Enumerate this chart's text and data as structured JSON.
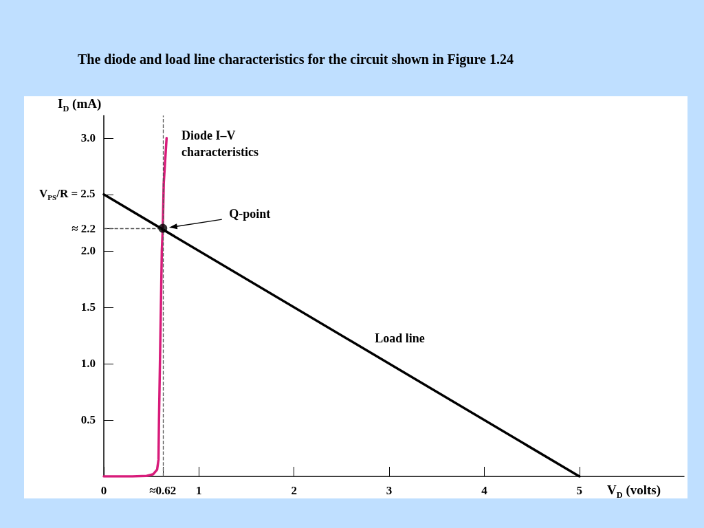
{
  "chart_data": {
    "type": "line",
    "title": "The diode and load line characteristics for the circuit shown in Figure 1.24",
    "xlabel": "V$_{D}$ (volts)",
    "ylabel": "I$_{D}$ (mA)",
    "xlim": [
      0,
      6.1
    ],
    "ylim": [
      0,
      3.2
    ],
    "xticks": [
      0,
      {
        "value": 0.62,
        "label": "≈0.62"
      },
      1,
      2,
      3,
      4,
      5
    ],
    "yticks": [
      0.5,
      {
        "value": 1,
        "label": "1.0"
      },
      1.5,
      {
        "value": 2,
        "label": "2.0"
      },
      {
        "value": 2.2,
        "label": "≈ 2.2"
      },
      {
        "value": 2.5,
        "label": "V$_{PS}$/R = 2.5"
      },
      {
        "value": 3,
        "label": "3.0"
      }
    ],
    "series": [
      {
        "color": "#d81b7a",
        "marker": "none",
        "x": [
          0,
          0.3,
          0.45,
          0.52,
          0.56,
          0.575,
          0.58,
          0.59,
          0.6,
          0.61,
          0.62,
          0.63,
          0.66
        ],
        "values": [
          0,
          0,
          0.005,
          0.02,
          0.06,
          0.15,
          0.5,
          1.0,
          1.5,
          2.0,
          2.2,
          2.6,
          3.0
        ]
      },
      {
        "color": "#000000",
        "marker": "none",
        "x": [
          0,
          5
        ],
        "values": [
          2.5,
          0
        ]
      },
      {
        "type": "scatter",
        "color": "#000000",
        "marker": "circle",
        "x": [
          0.62
        ],
        "values": [
          2.2
        ]
      }
    ],
    "ref_lines": [
      {
        "axis": "x",
        "value": 0.62,
        "color": "#555555",
        "line_style": "dashed"
      },
      {
        "axis": "y",
        "value": 2.2,
        "color": "#555555",
        "line_style": "dashed"
      }
    ],
    "annotations": [
      "Diode I–V characteristics",
      "Q-point",
      "Load line"
    ],
    "grid": false
  }
}
